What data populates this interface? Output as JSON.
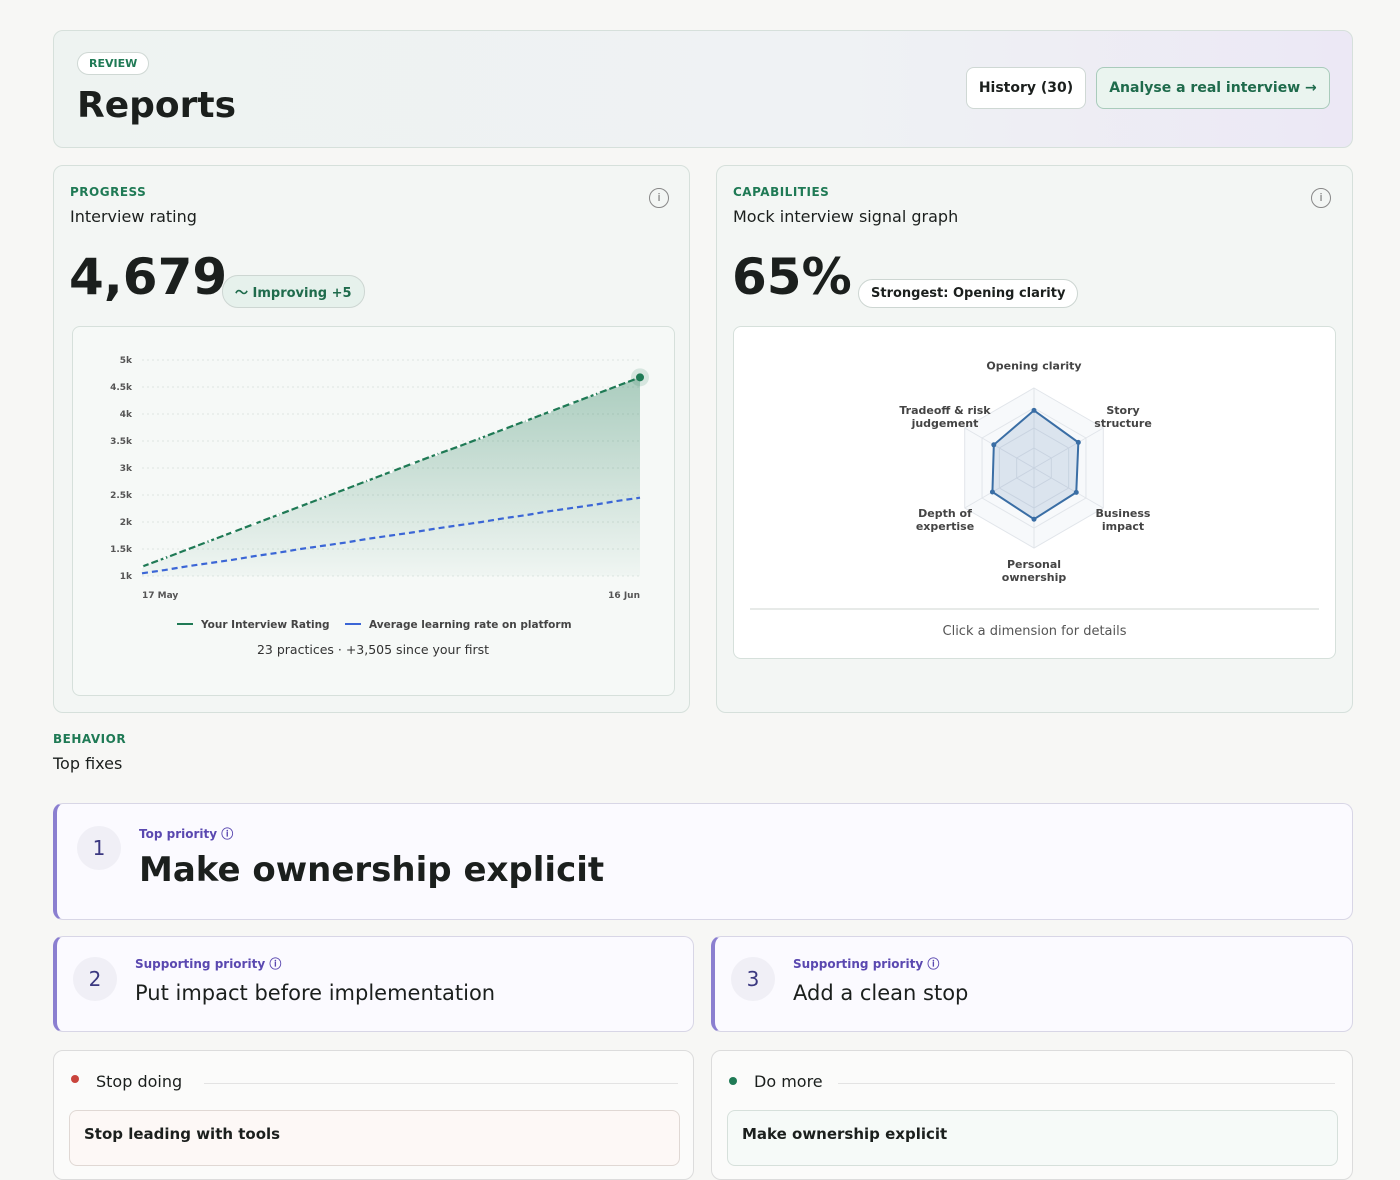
{
  "header": {
    "eyebrow": "REVIEW",
    "title": "Reports",
    "buttons": [
      "History (30)",
      "Analyse a real interview"
    ]
  },
  "progress": {
    "eyebrow": "PROGRESS",
    "title": "Interview rating",
    "value": "4,679",
    "badge": "Improving +5",
    "footer": "23 practices · +3,505 since your first",
    "chart_data": {
      "type": "line",
      "categories": [
        "17 May",
        null,
        null,
        null,
        null,
        null,
        null,
        null,
        null,
        null,
        null,
        null,
        null,
        null,
        null,
        null,
        null,
        null,
        null,
        null,
        null,
        null,
        "16 Jun"
      ],
      "ylim": [
        1000,
        5000
      ],
      "yticks": [
        {
          "value": 1000,
          "label": "1k"
        },
        {
          "value": 1500,
          "label": "1.5k"
        },
        {
          "value": 2000,
          "label": "2k"
        },
        {
          "value": 2500,
          "label": "2.5k"
        },
        {
          "value": 3000,
          "label": "3k"
        },
        {
          "value": 3500,
          "label": "3.5k"
        },
        {
          "value": 4000,
          "label": "4k"
        },
        {
          "value": 4500,
          "label": "4.5k"
        },
        {
          "value": 5000,
          "label": "5k"
        }
      ],
      "series": [
        {
          "name": "Your Interview Rating",
          "color": "#1f7a55",
          "values": [
            1174,
            1330,
            1490,
            1650,
            1810,
            1970,
            2130,
            2290,
            2450,
            2610,
            2770,
            2930,
            3090,
            3250,
            3400,
            3560,
            3720,
            3880,
            4040,
            4200,
            4360,
            4520,
            4679
          ]
        },
        {
          "name": "Average learning rate on platform",
          "color": "#3b66d6",
          "values": [
            1050,
            1110,
            1180,
            1240,
            1300,
            1370,
            1430,
            1500,
            1560,
            1620,
            1690,
            1750,
            1810,
            1880,
            1940,
            2000,
            2070,
            2130,
            2200,
            2260,
            2320,
            2390,
            2450
          ]
        }
      ]
    }
  },
  "capabilities": {
    "eyebrow": "CAPABILITIES",
    "title": "Mock interview signal graph",
    "value": "65%",
    "badge": "Strongest: Opening clarity",
    "hint": "Click a dimension for details",
    "chart_data": {
      "type": "radar",
      "categories": [
        "Opening clarity",
        "Story structure",
        "Business impact",
        "Personal ownership",
        "Depth of expertise",
        "Tradeoff & risk judgement"
      ],
      "rlim": [
        0,
        100
      ],
      "color": "#3a6ea5",
      "values": [
        72,
        64,
        61,
        64,
        60,
        58
      ]
    }
  },
  "fixes": {
    "eyebrow": "BEHAVIOR",
    "title": "Top fixes",
    "items": [
      {
        "rank": 1,
        "tag": "Top priority",
        "title": "Make ownership explicit"
      },
      {
        "rank": 2,
        "tag": "Supporting priority",
        "title": "Put impact before implementation"
      },
      {
        "rank": 3,
        "tag": "Supporting priority",
        "title": "Add a clean stop"
      }
    ]
  },
  "stop_doing": {
    "title": "Stop doing",
    "items": [
      "Stop leading with tools"
    ]
  },
  "do_more": {
    "title": "Do more",
    "items": [
      "Make ownership explicit"
    ]
  }
}
